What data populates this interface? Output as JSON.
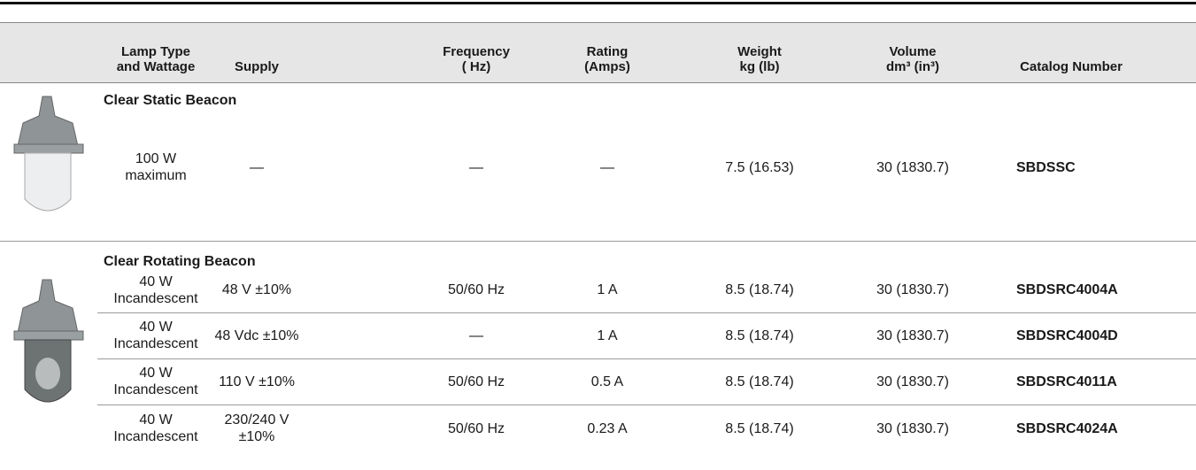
{
  "table": {
    "header": [
      "Lamp Type\nand Wattage",
      "Supply",
      "Frequency\n( Hz)",
      "Rating\n(Amps)",
      "Weight\nkg (lb)",
      "Volume\ndm³ (in³)",
      "Catalog Number"
    ],
    "groups": [
      {
        "title": "Clear Static Beacon",
        "rows": [
          [
            "100 W\nmaximum",
            "—",
            "—",
            "—",
            "7.5 (16.53)",
            "30 (1830.7)",
            "SBDSSC"
          ]
        ]
      },
      {
        "title": "Clear Rotating Beacon",
        "rows": [
          [
            "40 W\nIncandescent",
            "48 V ±10%",
            "50/60 Hz",
            "1 A",
            "8.5 (18.74)",
            "30 (1830.7)",
            "SBDSRC4004A"
          ],
          [
            "40 W\nIncandescent",
            "48 Vdc ±10%",
            "—",
            "1 A",
            "8.5 (18.74)",
            "30 (1830.7)",
            "SBDSRC4004D"
          ],
          [
            "40 W\nIncandescent",
            "110 V ±10%",
            "50/60 Hz",
            "0.5 A",
            "8.5 (18.74)",
            "30 (1830.7)",
            "SBDSRC4011A"
          ],
          [
            "40 W\nIncandescent",
            "230/240 V\n±10%",
            "50/60 Hz",
            "0.23 A",
            "8.5 (18.74)",
            "30 (1830.7)",
            "SBDSRC4024A"
          ]
        ]
      }
    ]
  }
}
